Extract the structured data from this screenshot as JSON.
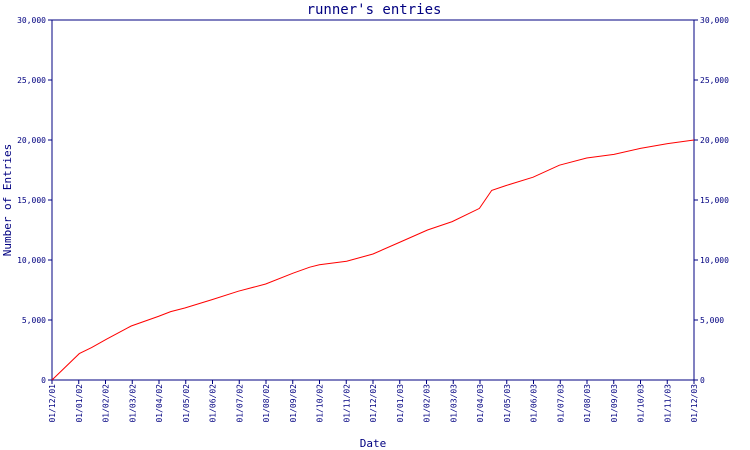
{
  "chart_data": {
    "type": "line",
    "title": "runner's entries",
    "xlabel": "Date",
    "ylabel": "Number of Entries",
    "ylim": [
      0,
      30000
    ],
    "y_ticks": [
      0,
      5000,
      10000,
      15000,
      20000,
      25000,
      30000
    ],
    "y_tick_labels": [
      "0",
      "5,000",
      "10,000",
      "15,000",
      "20,000",
      "25,000",
      "30,000"
    ],
    "y_axis_sides": "left-and-right",
    "x_tick_labels": [
      "01/12/01",
      "01/01/02",
      "01/02/02",
      "01/03/02",
      "01/04/02",
      "01/05/02",
      "01/06/02",
      "01/07/02",
      "01/08/02",
      "01/09/02",
      "01/10/02",
      "01/11/02",
      "01/12/02",
      "01/01/03",
      "01/02/03",
      "01/03/03",
      "01/04/03",
      "01/05/03",
      "01/06/03",
      "01/07/03",
      "01/08/03",
      "01/09/03",
      "01/10/03",
      "01/11/03",
      "01/12/03"
    ],
    "xlim": [
      "2001-12-01",
      "2003-12-01"
    ],
    "grid": false,
    "legend": "none",
    "series": [
      {
        "color": "#ff0000",
        "x": [
          "2001-12-01",
          "2002-01-01",
          "2002-01-15",
          "2002-02-01",
          "2002-03-01",
          "2002-04-01",
          "2002-04-15",
          "2002-05-01",
          "2002-06-01",
          "2002-07-01",
          "2002-08-01",
          "2002-09-01",
          "2002-09-20",
          "2002-10-01",
          "2002-11-01",
          "2002-12-01",
          "2003-01-01",
          "2003-02-01",
          "2003-03-01",
          "2003-04-01",
          "2003-04-15",
          "2003-05-01",
          "2003-06-01",
          "2003-07-01",
          "2003-08-01",
          "2003-09-01",
          "2003-10-01",
          "2003-11-01",
          "2003-12-01"
        ],
        "y": [
          0,
          2200,
          2700,
          3400,
          4500,
          5300,
          5700,
          6000,
          6700,
          7400,
          8000,
          8900,
          9400,
          9600,
          9900,
          10500,
          11500,
          12500,
          13200,
          14300,
          15800,
          16200,
          16900,
          17900,
          18500,
          18800,
          19300,
          19700,
          20000
        ]
      }
    ]
  }
}
